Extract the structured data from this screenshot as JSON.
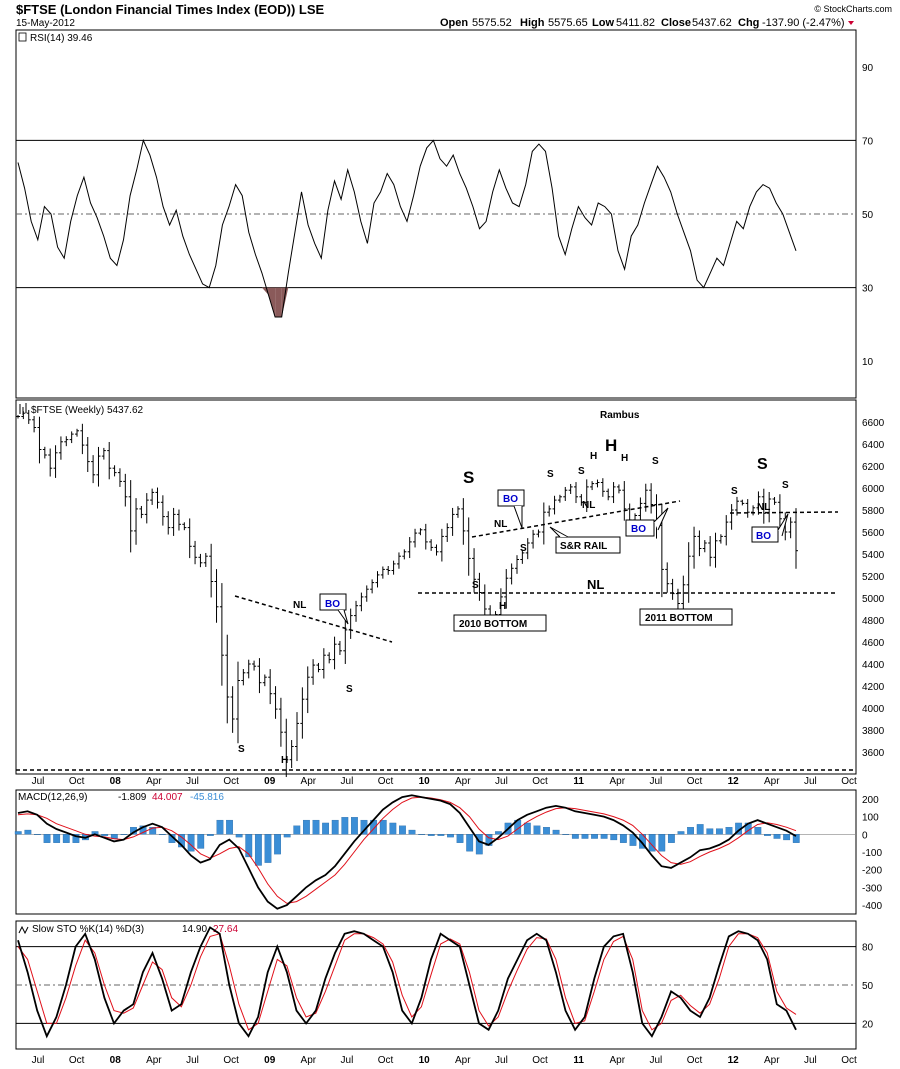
{
  "header": {
    "title": "$FTSE (London Financial Times Index (EOD)) LSE",
    "date": "15-May-2012",
    "open_label": "Open",
    "open": "5575.52",
    "high_label": "High",
    "high": "5575.65",
    "low_label": "Low",
    "low": "5411.82",
    "close_label": "Close",
    "close": "5437.62",
    "chg_label": "Chg",
    "chg": "-137.90 (-2.47%)",
    "watermark": "© StockCharts.com"
  },
  "colors": {
    "down": "#cc0033",
    "macd_hist": "#3b8ed6",
    "signal": "#e0101a",
    "rsi_fill": "#8a5a5a",
    "badge_text": "#0000cc"
  },
  "time_axis": {
    "labels": [
      "Jul",
      "Oct",
      "08",
      "Apr",
      "Jul",
      "Oct",
      "09",
      "Apr",
      "Jul",
      "Oct",
      "10",
      "Apr",
      "Jul",
      "Oct",
      "11",
      "Apr",
      "Jul",
      "Oct",
      "12",
      "Apr",
      "Jul",
      "Oct"
    ],
    "start": "2007-07",
    "end": "2012-10"
  },
  "chart_data": [
    {
      "type": "line",
      "panel": "rsi",
      "label": "RSI(14) 39.46",
      "ylim": [
        0,
        100
      ],
      "yticks": [
        90,
        70,
        50,
        30,
        10
      ],
      "levels": [
        70,
        50,
        30
      ],
      "values": [
        64,
        57,
        48,
        43,
        52,
        50,
        41,
        38,
        48,
        55,
        60,
        53,
        49,
        44,
        38,
        36,
        43,
        55,
        62,
        70,
        66,
        60,
        52,
        47,
        51,
        44,
        39,
        35,
        31,
        30,
        36,
        47,
        52,
        58,
        55,
        45,
        39,
        34,
        28,
        22,
        22,
        34,
        45,
        56,
        47,
        42,
        38,
        51,
        59,
        54,
        62,
        56,
        48,
        42,
        53,
        56,
        61,
        58,
        52,
        48,
        55,
        63,
        68,
        70,
        65,
        63,
        66,
        61,
        57,
        52,
        46,
        48,
        56,
        62,
        57,
        53,
        52,
        58,
        67,
        69,
        67,
        57,
        44,
        39,
        46,
        52,
        49,
        47,
        53,
        52,
        50,
        40,
        35,
        44,
        47,
        53,
        58,
        63,
        60,
        56,
        50,
        45,
        40,
        32,
        30,
        34,
        38,
        36,
        42,
        48,
        46,
        52,
        56,
        58,
        57,
        53,
        50,
        45,
        40
      ],
      "overbought": 70,
      "oversold": 30
    },
    {
      "type": "ohlc",
      "panel": "price",
      "label": "$FTSE (Weekly) 5437.62",
      "ylim": [
        3400,
        6800
      ],
      "yticks": [
        6600,
        6400,
        6200,
        6000,
        5800,
        5600,
        5400,
        5200,
        5000,
        4800,
        4600,
        4400,
        4200,
        4000,
        3800,
        3600
      ],
      "values": [
        6650,
        6680,
        6620,
        6550,
        6350,
        6300,
        6180,
        6320,
        6420,
        6440,
        6490,
        6520,
        6390,
        6240,
        6120,
        6290,
        6340,
        6180,
        6140,
        6060,
        5920,
        5610,
        5810,
        5760,
        5890,
        5960,
        5870,
        5740,
        5640,
        5760,
        5670,
        5640,
        5470,
        5370,
        5320,
        5380,
        5150,
        4920,
        4480,
        4100,
        3900,
        4250,
        4320,
        4400,
        4380,
        4230,
        4280,
        4130,
        3990,
        3780,
        3530,
        3650,
        3860,
        4080,
        4280,
        4390,
        4350,
        4480,
        4440,
        4580,
        4520,
        4710,
        4840,
        4930,
        5010,
        5080,
        5140,
        5210,
        5260,
        5250,
        5310,
        5380,
        5420,
        5510,
        5590,
        5620,
        5510,
        5460,
        5420,
        5560,
        5640,
        5760,
        5810,
        5610,
        5360,
        5170,
        5050,
        4900,
        4830,
        4850,
        5010,
        5180,
        5270,
        5350,
        5410,
        5500,
        5580,
        5600,
        5780,
        5810,
        5890,
        5920,
        5980,
        6010,
        5920,
        5870,
        6010,
        6040,
        6050,
        5970,
        5920,
        6010,
        5980,
        5810,
        5710,
        5750,
        5860,
        5980,
        5850,
        5660,
        5260,
        5130,
        5040,
        4950,
        5120,
        5380,
        5560,
        5450,
        5500,
        5370,
        5520,
        5560,
        5690,
        5800,
        5880,
        5860,
        5780,
        5820,
        5920,
        5770,
        5900,
        5870,
        5720,
        5600,
        5690,
        5430
      ],
      "neckline_level": 4800,
      "annotations": {
        "rambus": "Rambus",
        "s_left_09": "S",
        "h_09": "H",
        "s_right_09": "S",
        "nl_09": "NL",
        "s_left_10": "S",
        "h_10": "H",
        "s_right_10": "S",
        "s_big": "S",
        "h_big": "H",
        "s_big_right": "S",
        "s_small_1": "S",
        "s_small_2": "S",
        "h_small_1": "H",
        "h_small_2": "H",
        "s_small_3": "S",
        "nl_10": "NL",
        "nl_top": "NL",
        "nl_2011": "NL",
        "nl_12": "NL",
        "s_12a": "S",
        "s_12b": "S",
        "s_12big": "S",
        "bo": "BO",
        "sr_rail": "S&R RAIL",
        "bottom_2010": "2010 BOTTOM",
        "bottom_2011": "2011 BOTTOM"
      }
    },
    {
      "type": "line",
      "panel": "macd",
      "label": "MACD(12,26,9)",
      "values_label": [
        "-1.809",
        "44.007",
        "-45.816"
      ],
      "ylim": [
        -450,
        250
      ],
      "yticks": [
        200,
        100,
        0,
        -100,
        -200,
        -300,
        -400
      ],
      "series": [
        {
          "name": "MACD",
          "values": [
            120,
            130,
            110,
            60,
            30,
            10,
            -10,
            -20,
            0,
            -20,
            -40,
            -30,
            10,
            40,
            60,
            40,
            -10,
            -60,
            -120,
            -160,
            -140,
            -60,
            -30,
            -80,
            -190,
            -300,
            -380,
            -420,
            -400,
            -350,
            -300,
            -260,
            -230,
            -180,
            -110,
            -40,
            20,
            80,
            140,
            180,
            210,
            220,
            210,
            200,
            190,
            170,
            120,
            40,
            -40,
            -60,
            -20,
            30,
            80,
            110,
            130,
            150,
            160,
            150,
            130,
            120,
            110,
            100,
            80,
            50,
            10,
            -50,
            -120,
            -180,
            -190,
            -160,
            -130,
            -90,
            -80,
            -60,
            -30,
            20,
            60,
            80,
            60,
            40,
            20,
            -10
          ]
        },
        {
          "name": "Signal",
          "values": [
            110,
            115,
            110,
            90,
            60,
            40,
            20,
            0,
            -10,
            -15,
            -25,
            -30,
            -15,
            10,
            35,
            40,
            20,
            -15,
            -60,
            -110,
            -135,
            -110,
            -80,
            -70,
            -110,
            -190,
            -280,
            -350,
            -390,
            -380,
            -350,
            -310,
            -270,
            -230,
            -170,
            -100,
            -30,
            30,
            90,
            140,
            180,
            205,
            210,
            205,
            195,
            180,
            150,
            100,
            30,
            -20,
            -30,
            -10,
            30,
            70,
            100,
            125,
            145,
            150,
            145,
            135,
            125,
            115,
            100,
            80,
            50,
            0,
            -60,
            -120,
            -160,
            -170,
            -155,
            -125,
            -100,
            -80,
            -55,
            -20,
            20,
            55,
            65,
            55,
            40,
            20
          ]
        }
      ]
    },
    {
      "type": "line",
      "panel": "stochastic",
      "label": "Slow STO %K(14) %D(3)",
      "values_label": [
        "14.90",
        "27.64"
      ],
      "ylim": [
        0,
        100
      ],
      "yticks": [
        80,
        50,
        20
      ],
      "levels": [
        80,
        50,
        20
      ],
      "series": [
        {
          "name": "%K",
          "values": [
            85,
            60,
            30,
            10,
            25,
            50,
            80,
            90,
            70,
            40,
            20,
            30,
            35,
            60,
            75,
            55,
            30,
            35,
            60,
            80,
            95,
            90,
            50,
            20,
            10,
            25,
            60,
            80,
            60,
            30,
            20,
            30,
            55,
            75,
            90,
            92,
            90,
            85,
            80,
            60,
            30,
            20,
            40,
            70,
            90,
            85,
            80,
            50,
            20,
            15,
            30,
            55,
            70,
            85,
            90,
            85,
            60,
            30,
            15,
            25,
            55,
            80,
            88,
            90,
            60,
            20,
            10,
            25,
            45,
            40,
            30,
            25,
            40,
            65,
            88,
            92,
            90,
            85,
            70,
            35,
            30,
            15
          ]
        },
        {
          "name": "%D",
          "values": [
            80,
            70,
            45,
            20,
            20,
            40,
            65,
            85,
            75,
            50,
            30,
            28,
            32,
            50,
            68,
            62,
            40,
            33,
            50,
            72,
            88,
            90,
            65,
            35,
            15,
            20,
            45,
            70,
            65,
            40,
            25,
            28,
            45,
            65,
            85,
            90,
            90,
            87,
            82,
            68,
            42,
            25,
            33,
            58,
            82,
            86,
            82,
            60,
            30,
            18,
            25,
            45,
            62,
            78,
            87,
            86,
            70,
            40,
            20,
            22,
            45,
            70,
            84,
            88,
            70,
            30,
            15,
            20,
            38,
            42,
            34,
            28,
            35,
            55,
            80,
            90,
            90,
            87,
            75,
            45,
            32,
            27
          ]
        }
      ]
    }
  ]
}
